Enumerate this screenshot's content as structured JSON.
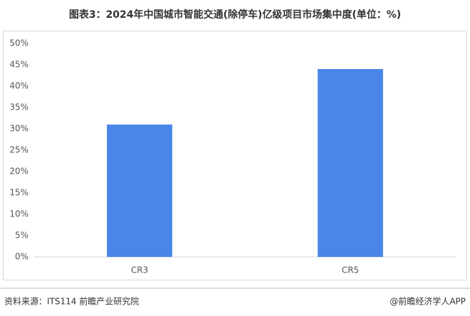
{
  "chart_data": {
    "type": "bar",
    "title": "图表3：2024年中国城市智能交通(除停车)亿级项目市场集中度(单位：%)",
    "categories": [
      "CR3",
      "CR5"
    ],
    "values": [
      31,
      44
    ],
    "color": "#4a86e8",
    "ylim": [
      0,
      50
    ],
    "yticks": [
      {
        "value": 0,
        "label": "0%"
      },
      {
        "value": 5,
        "label": "5%"
      },
      {
        "value": 10,
        "label": "10%"
      },
      {
        "value": 15,
        "label": "15%"
      },
      {
        "value": 20,
        "label": "20%"
      },
      {
        "value": 25,
        "label": "25%"
      },
      {
        "value": 30,
        "label": "30%"
      },
      {
        "value": 35,
        "label": "35%"
      },
      {
        "value": 40,
        "label": "40%"
      },
      {
        "value": 45,
        "label": "45%"
      },
      {
        "value": 50,
        "label": "50%"
      }
    ],
    "grid": false,
    "source": "资料来源：ITS114 前瞻产业研究院",
    "credit": "@前瞻经济学人APP"
  }
}
